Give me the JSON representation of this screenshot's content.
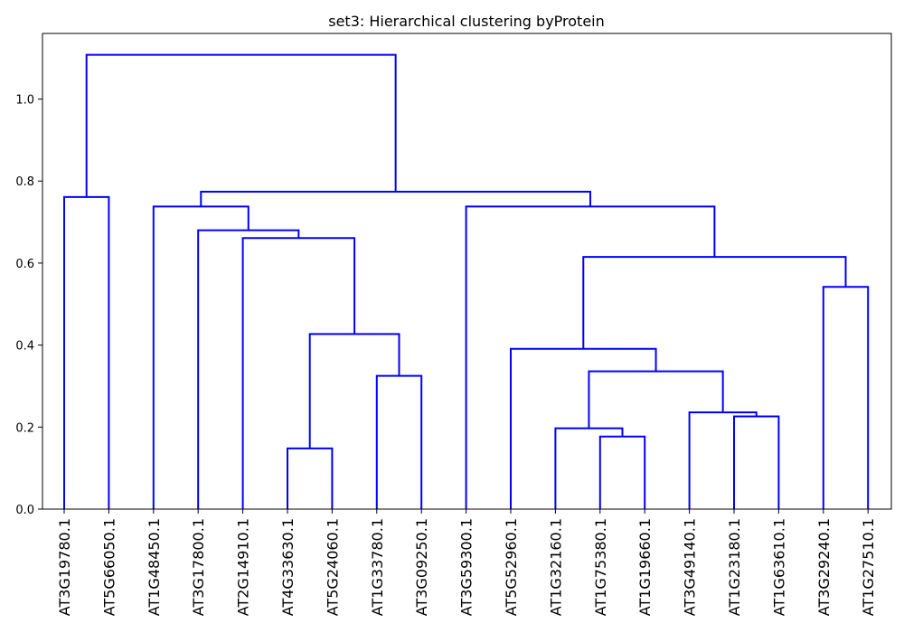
{
  "chart_data": {
    "type": "dendrogram",
    "title": "set3: Hierarchical clustering byProtein",
    "xlabel": "",
    "ylabel": "",
    "ylim": [
      0,
      1.16
    ],
    "yticks": [
      "0.0",
      "0.2",
      "0.4",
      "0.6",
      "0.8",
      "1.0"
    ],
    "grid": false,
    "colors": {
      "branches": "#0000ff",
      "axes": "#000000"
    },
    "leaves": [
      "AT3G19780.1",
      "AT5G66050.1",
      "AT1G48450.1",
      "AT3G17800.1",
      "AT2G14910.1",
      "AT4G33630.1",
      "AT5G24060.1",
      "AT1G33780.1",
      "AT3G09250.1",
      "AT3G59300.1",
      "AT5G52960.1",
      "AT1G32160.1",
      "AT1G75380.1",
      "AT1G19660.1",
      "AT3G49140.1",
      "AT1G23180.1",
      "AT1G63610.1",
      "AT3G29240.1",
      "AT1G27510.1"
    ],
    "merges": [
      {
        "id": "c1",
        "left": "AT4G33630.1",
        "right": "AT5G24060.1",
        "height": 0.148
      },
      {
        "id": "c2",
        "left": "AT1G75380.1",
        "right": "AT1G19660.1",
        "height": 0.177
      },
      {
        "id": "c3",
        "left": "AT1G32160.1",
        "right": "c2",
        "height": 0.197
      },
      {
        "id": "c4",
        "left": "AT1G23180.1",
        "right": "AT1G63610.1",
        "height": 0.226
      },
      {
        "id": "c5",
        "left": "AT3G49140.1",
        "right": "c4",
        "height": 0.236
      },
      {
        "id": "c6",
        "left": "AT1G33780.1",
        "right": "AT3G09250.1",
        "height": 0.325
      },
      {
        "id": "c7",
        "left": "c3",
        "right": "c5",
        "height": 0.336
      },
      {
        "id": "c8",
        "left": "AT5G52960.1",
        "right": "c7",
        "height": 0.391
      },
      {
        "id": "c9",
        "left": "c1",
        "right": "c6",
        "height": 0.427
      },
      {
        "id": "c10",
        "left": "AT3G29240.1",
        "right": "AT1G27510.1",
        "height": 0.542
      },
      {
        "id": "c11",
        "left": "c8",
        "right": "c10",
        "height": 0.615
      },
      {
        "id": "c12",
        "left": "AT2G14910.1",
        "right": "c9",
        "height": 0.661
      },
      {
        "id": "c13",
        "left": "AT3G17800.1",
        "right": "c12",
        "height": 0.68
      },
      {
        "id": "c14",
        "left": "AT1G48450.1",
        "right": "c13",
        "height": 0.738
      },
      {
        "id": "c15",
        "left": "AT3G59300.1",
        "right": "c11",
        "height": 0.738
      },
      {
        "id": "c16",
        "left": "AT3G19780.1",
        "right": "AT5G66050.1",
        "height": 0.761
      },
      {
        "id": "c17",
        "left": "c14",
        "right": "c15",
        "height": 0.774
      },
      {
        "id": "c18",
        "left": "c16",
        "right": "c17",
        "height": 1.108
      }
    ]
  }
}
